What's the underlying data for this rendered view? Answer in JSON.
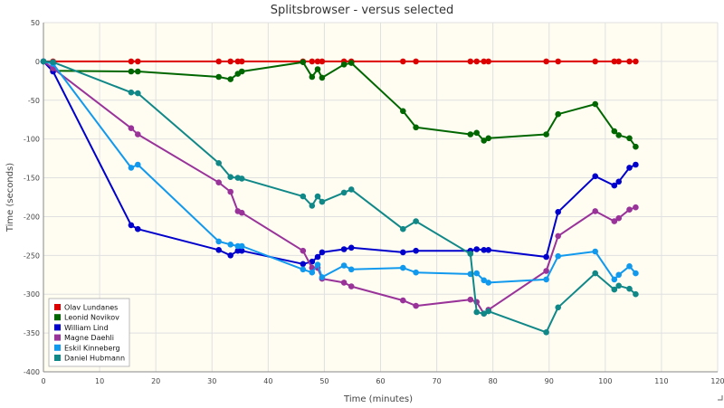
{
  "chart_data": {
    "type": "line",
    "title": "Splitsbrowser - versus selected",
    "xlabel": "Time (minutes)",
    "ylabel": "Time (seconds)",
    "xlim": [
      0,
      120
    ],
    "ylim": [
      -400,
      50
    ],
    "xticks": [
      0,
      10,
      20,
      30,
      40,
      50,
      60,
      70,
      80,
      90,
      100,
      110,
      120
    ],
    "yticks": [
      50,
      0,
      -50,
      -100,
      -150,
      -200,
      -250,
      -300,
      -350,
      -400
    ],
    "grid": true,
    "legend_position": "bottom-left",
    "series": [
      {
        "name": "Olav Lundanes",
        "color": "#dd0000",
        "points": [
          [
            0,
            0
          ],
          [
            1.7,
            0
          ],
          [
            15.6,
            0
          ],
          [
            16.8,
            0
          ],
          [
            31.2,
            0
          ],
          [
            33.3,
            0
          ],
          [
            34.6,
            0
          ],
          [
            35.3,
            0
          ],
          [
            46.2,
            0
          ],
          [
            47.8,
            0
          ],
          [
            48.8,
            0
          ],
          [
            49.6,
            0
          ],
          [
            53.5,
            0
          ],
          [
            54.8,
            0
          ],
          [
            64,
            0
          ],
          [
            66.3,
            0
          ],
          [
            76,
            0
          ],
          [
            77.1,
            0
          ],
          [
            78.4,
            0
          ],
          [
            79.2,
            0
          ],
          [
            89.5,
            0
          ],
          [
            91.6,
            0
          ],
          [
            98.2,
            0
          ],
          [
            101.6,
            0
          ],
          [
            102.4,
            0
          ],
          [
            104.3,
            0
          ],
          [
            105.4,
            0
          ]
        ]
      },
      {
        "name": "Leonid Novikov",
        "color": "#006600",
        "points": [
          [
            0,
            0
          ],
          [
            1.7,
            -12
          ],
          [
            15.6,
            -13
          ],
          [
            16.8,
            -13
          ],
          [
            31.2,
            -20
          ],
          [
            33.3,
            -23
          ],
          [
            34.6,
            -16
          ],
          [
            35.3,
            -13
          ],
          [
            46.2,
            -1
          ],
          [
            47.8,
            -20
          ],
          [
            48.8,
            -10
          ],
          [
            49.6,
            -21
          ],
          [
            53.5,
            -4
          ],
          [
            54.8,
            -2
          ],
          [
            64,
            -64
          ],
          [
            66.3,
            -85
          ],
          [
            76,
            -94
          ],
          [
            77.1,
            -92
          ],
          [
            78.4,
            -102
          ],
          [
            79.2,
            -99
          ],
          [
            89.5,
            -94
          ],
          [
            91.6,
            -68
          ],
          [
            98.2,
            -55
          ],
          [
            101.6,
            -90
          ],
          [
            102.4,
            -95
          ],
          [
            104.3,
            -99
          ],
          [
            105.4,
            -110
          ]
        ]
      },
      {
        "name": "William Lind",
        "color": "#0000cc",
        "points": [
          [
            0,
            0
          ],
          [
            1.7,
            -13
          ],
          [
            15.6,
            -211
          ],
          [
            16.8,
            -216
          ],
          [
            31.2,
            -243
          ],
          [
            33.3,
            -250
          ],
          [
            34.6,
            -244
          ],
          [
            35.3,
            -244
          ],
          [
            46.2,
            -261
          ],
          [
            47.8,
            -258
          ],
          [
            48.8,
            -252
          ],
          [
            49.6,
            -246
          ],
          [
            53.5,
            -242
          ],
          [
            54.8,
            -240
          ],
          [
            64,
            -246
          ],
          [
            66.3,
            -244
          ],
          [
            76,
            -244
          ],
          [
            77.1,
            -242
          ],
          [
            78.4,
            -243
          ],
          [
            79.2,
            -243
          ],
          [
            89.5,
            -252
          ],
          [
            91.6,
            -194
          ],
          [
            98.2,
            -148
          ],
          [
            101.6,
            -160
          ],
          [
            102.4,
            -155
          ],
          [
            104.3,
            -137
          ],
          [
            105.4,
            -133
          ]
        ]
      },
      {
        "name": "Magne Daehli",
        "color": "#993399",
        "points": [
          [
            0,
            0
          ],
          [
            1.7,
            -9
          ],
          [
            15.6,
            -86
          ],
          [
            16.8,
            -94
          ],
          [
            31.2,
            -156
          ],
          [
            33.3,
            -168
          ],
          [
            34.6,
            -193
          ],
          [
            35.3,
            -195
          ],
          [
            46.2,
            -244
          ],
          [
            47.8,
            -266
          ],
          [
            48.8,
            -266
          ],
          [
            49.6,
            -280
          ],
          [
            53.5,
            -285
          ],
          [
            54.8,
            -290
          ],
          [
            64,
            -308
          ],
          [
            66.3,
            -315
          ],
          [
            76,
            -307
          ],
          [
            77.1,
            -310
          ],
          [
            78.4,
            -325
          ],
          [
            79.2,
            -320
          ],
          [
            89.5,
            -270
          ],
          [
            91.6,
            -225
          ],
          [
            98.2,
            -193
          ],
          [
            101.6,
            -206
          ],
          [
            102.4,
            -202
          ],
          [
            104.3,
            -191
          ],
          [
            105.4,
            -188
          ]
        ]
      },
      {
        "name": "Eskil Kinneberg",
        "color": "#1199ee",
        "points": [
          [
            0,
            0
          ],
          [
            1.7,
            -3
          ],
          [
            15.6,
            -137
          ],
          [
            16.8,
            -133
          ],
          [
            31.2,
            -232
          ],
          [
            33.3,
            -236
          ],
          [
            34.6,
            -238
          ],
          [
            35.3,
            -238
          ],
          [
            46.2,
            -268
          ],
          [
            47.8,
            -272
          ],
          [
            48.8,
            -262
          ],
          [
            49.6,
            -278
          ],
          [
            53.5,
            -263
          ],
          [
            54.8,
            -268
          ],
          [
            64,
            -266
          ],
          [
            66.3,
            -272
          ],
          [
            76,
            -274
          ],
          [
            77.1,
            -273
          ],
          [
            78.4,
            -282
          ],
          [
            79.2,
            -285
          ],
          [
            89.5,
            -281
          ],
          [
            91.6,
            -251
          ],
          [
            98.2,
            -245
          ],
          [
            101.6,
            -281
          ],
          [
            102.4,
            -275
          ],
          [
            104.3,
            -264
          ],
          [
            105.4,
            -273
          ]
        ]
      },
      {
        "name": "Daniel Hubmann",
        "color": "#118888",
        "points": [
          [
            0,
            0
          ],
          [
            1.7,
            -1
          ],
          [
            15.6,
            -40
          ],
          [
            16.8,
            -41
          ],
          [
            31.2,
            -131
          ],
          [
            33.3,
            -149
          ],
          [
            34.6,
            -150
          ],
          [
            35.3,
            -151
          ],
          [
            46.2,
            -174
          ],
          [
            47.8,
            -186
          ],
          [
            48.8,
            -174
          ],
          [
            49.6,
            -181
          ],
          [
            53.5,
            -169
          ],
          [
            54.8,
            -165
          ],
          [
            64,
            -216
          ],
          [
            66.3,
            -206
          ],
          [
            76,
            -248
          ],
          [
            77.1,
            -323
          ],
          [
            78.4,
            -325
          ],
          [
            79.2,
            -322
          ],
          [
            89.5,
            -349
          ],
          [
            91.6,
            -317
          ],
          [
            98.2,
            -273
          ],
          [
            101.6,
            -294
          ],
          [
            102.4,
            -289
          ],
          [
            104.3,
            -293
          ],
          [
            105.4,
            -300
          ]
        ]
      }
    ]
  }
}
